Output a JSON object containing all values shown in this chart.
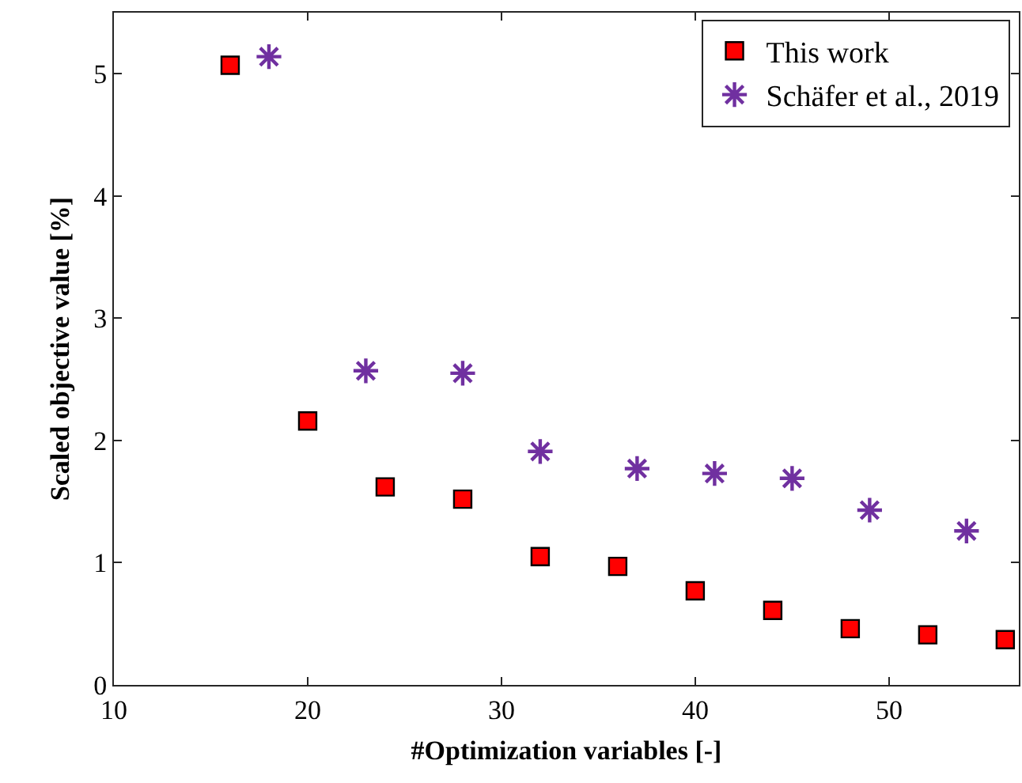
{
  "chart_data": {
    "type": "scatter",
    "xlabel": "#Optimization variables [-]",
    "ylabel": "Scaled objective value [%]",
    "xlim": [
      10,
      56.7
    ],
    "xticks": [
      10,
      20,
      30,
      40,
      50
    ],
    "ylim": [
      0,
      5.5
    ],
    "yticks": [
      0,
      1,
      2,
      3,
      4,
      5
    ],
    "grid": false,
    "legend": "top right",
    "series": [
      {
        "name": "This work",
        "color": "#ff0000",
        "marker": "square",
        "x": [
          16,
          20,
          24,
          28,
          32,
          36,
          40,
          44,
          48,
          52,
          56
        ],
        "values": [
          5.07,
          2.16,
          1.62,
          1.52,
          1.05,
          0.97,
          0.77,
          0.61,
          0.46,
          0.41,
          0.37
        ]
      },
      {
        "name": "Schäfer et al., 2019",
        "color": "#7030a0",
        "marker": "cross",
        "x": [
          18,
          23,
          28,
          32,
          37,
          41,
          45,
          49,
          54
        ],
        "values": [
          5.14,
          2.57,
          2.55,
          1.91,
          1.77,
          1.73,
          1.69,
          1.43,
          1.26
        ]
      }
    ]
  }
}
